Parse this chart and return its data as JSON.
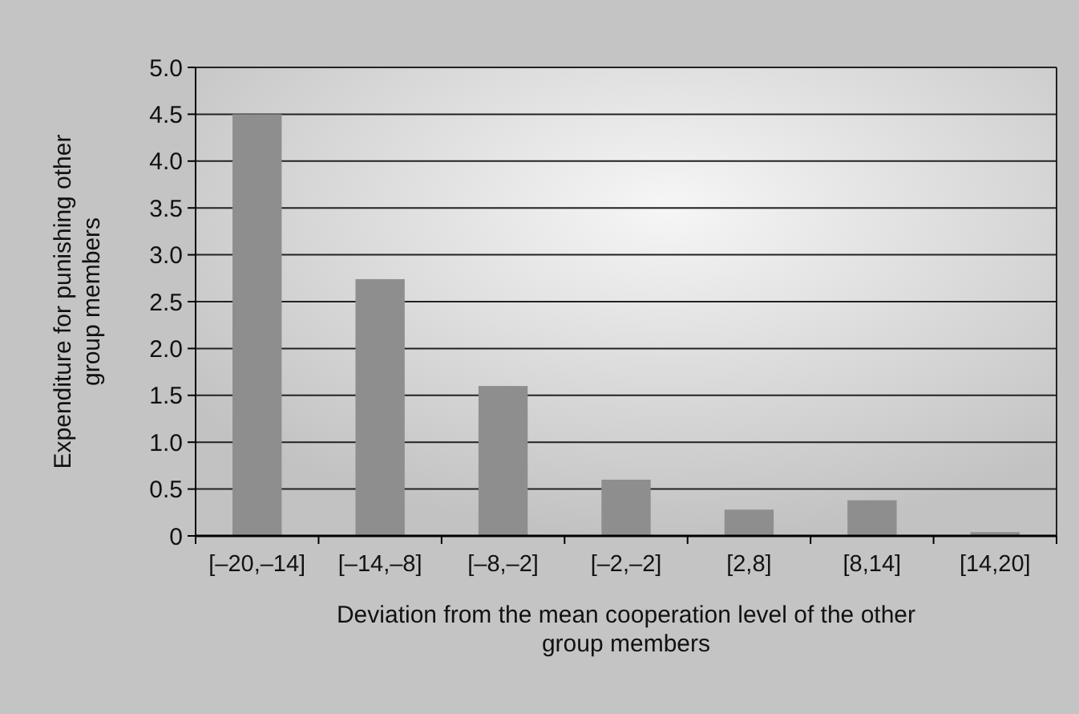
{
  "chart_data": {
    "type": "bar",
    "xlabel": "Deviation from the mean cooperation level of the other group members",
    "ylabel": "Expenditure for punishing other group members",
    "categories": [
      "[–20,–14]",
      "[–14,–8]",
      "[–8,–2]",
      "[–2,–2]",
      "[2,8]",
      "[8,14]",
      "[14,20]"
    ],
    "values": [
      4.5,
      2.74,
      1.6,
      0.6,
      0.28,
      0.38,
      0.04
    ],
    "color": "#8e8e8e",
    "ylim": [
      0,
      5
    ],
    "yticks": [
      {
        "value": 0,
        "label": "0"
      },
      {
        "value": 0.5,
        "label": "0.5"
      },
      {
        "value": 1,
        "label": "1.0"
      },
      {
        "value": 1.5,
        "label": "1.5"
      },
      {
        "value": 2,
        "label": "2.0"
      },
      {
        "value": 2.5,
        "label": "2.5"
      },
      {
        "value": 3,
        "label": "3.0"
      },
      {
        "value": 3.5,
        "label": "3.5"
      },
      {
        "value": 4,
        "label": "4.0"
      },
      {
        "value": 4.5,
        "label": "4.5"
      },
      {
        "value": 5,
        "label": "5.0"
      }
    ],
    "grid": "y"
  }
}
